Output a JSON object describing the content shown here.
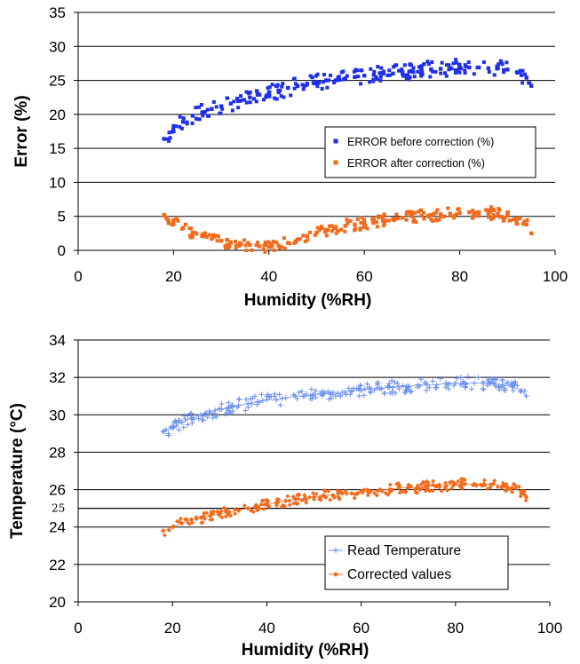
{
  "chart_data": [
    {
      "type": "scatter",
      "xlabel": "Humidity (%RH)",
      "ylabel": "Error (%)",
      "xlim": [
        0,
        100
      ],
      "ylim": [
        0,
        35
      ],
      "xticks": [
        0,
        20,
        40,
        60,
        80,
        100
      ],
      "yticks": [
        0,
        5,
        10,
        15,
        20,
        25,
        30,
        35
      ],
      "grid": "horizontal",
      "legend_position": "right-middle",
      "series": [
        {
          "name": "ERROR before correction (%)",
          "color": "#1f2fe8",
          "marker": "square",
          "x": [
            18,
            20,
            22,
            24,
            26,
            28,
            30,
            32,
            34,
            36,
            38,
            40,
            42,
            44,
            46,
            48,
            50,
            52,
            54,
            56,
            58,
            60,
            62,
            64,
            66,
            68,
            70,
            72,
            74,
            76,
            78,
            80,
            82,
            84,
            86,
            88,
            90,
            92,
            94,
            95
          ],
          "y": [
            16.4,
            17.5,
            18.9,
            19.8,
            20.3,
            20.8,
            21.2,
            21.6,
            22.0,
            22.5,
            22.9,
            23.2,
            23.5,
            23.9,
            24.2,
            24.5,
            24.8,
            25.0,
            25.0,
            25.3,
            25.5,
            25.7,
            25.8,
            26.0,
            26.0,
            26.2,
            26.4,
            26.6,
            26.6,
            26.7,
            26.8,
            26.9,
            26.9,
            26.9,
            26.8,
            26.8,
            26.6,
            26.2,
            25.4,
            24.2
          ]
        },
        {
          "name": "ERROR after correction (%)",
          "color": "#f26a1b",
          "marker": "square",
          "x": [
            18,
            20,
            22,
            24,
            26,
            28,
            30,
            32,
            34,
            36,
            38,
            40,
            42,
            44,
            46,
            48,
            50,
            52,
            54,
            56,
            58,
            60,
            62,
            64,
            66,
            68,
            70,
            72,
            74,
            76,
            78,
            80,
            82,
            84,
            86,
            88,
            90,
            92,
            94,
            95
          ],
          "y": [
            5.2,
            4.3,
            3.3,
            2.6,
            2.1,
            1.7,
            1.4,
            1.1,
            0.9,
            0.8,
            0.6,
            0.5,
            0.7,
            1.1,
            1.6,
            2.1,
            2.6,
            3.0,
            3.3,
            3.6,
            3.8,
            4.0,
            4.2,
            4.5,
            4.6,
            4.8,
            5.0,
            5.1,
            5.2,
            5.3,
            5.4,
            5.5,
            5.6,
            5.6,
            5.5,
            5.4,
            5.1,
            4.6,
            3.8,
            2.5
          ]
        }
      ]
    },
    {
      "type": "scatter",
      "xlabel": "Humidity (%RH)",
      "ylabel": "Temperature (°C)",
      "xlim": [
        0,
        100
      ],
      "ylim": [
        20,
        34
      ],
      "xticks": [
        0,
        20,
        40,
        60,
        80,
        100
      ],
      "yticks": [
        20,
        22,
        24,
        26,
        28,
        30,
        32,
        34
      ],
      "grid": "horizontal",
      "legend_position": "bottom-right",
      "reference_line": {
        "y": 25,
        "label": "25"
      },
      "series": [
        {
          "name": "Read Temperature",
          "color": "#6b8ff0",
          "marker": "cross",
          "x": [
            18,
            20,
            22,
            24,
            26,
            28,
            30,
            32,
            34,
            36,
            38,
            40,
            42,
            44,
            46,
            48,
            50,
            52,
            54,
            56,
            58,
            60,
            62,
            64,
            66,
            68,
            70,
            72,
            74,
            76,
            78,
            80,
            82,
            84,
            86,
            88,
            90,
            92,
            94,
            95
          ],
          "y": [
            29.1,
            29.3,
            29.6,
            29.8,
            30.0,
            30.1,
            30.3,
            30.4,
            30.5,
            30.6,
            30.7,
            30.8,
            30.8,
            30.9,
            31.0,
            31.0,
            31.1,
            31.1,
            31.2,
            31.2,
            31.3,
            31.3,
            31.4,
            31.4,
            31.5,
            31.5,
            31.5,
            31.6,
            31.6,
            31.6,
            31.7,
            31.7,
            31.7,
            31.7,
            31.7,
            31.7,
            31.6,
            31.5,
            31.3,
            31.0
          ]
        },
        {
          "name": "Corrected values",
          "color": "#f26a1b",
          "marker": "diamond",
          "x": [
            18,
            20,
            22,
            24,
            26,
            28,
            30,
            32,
            34,
            36,
            38,
            40,
            42,
            44,
            46,
            48,
            50,
            52,
            54,
            56,
            58,
            60,
            62,
            64,
            66,
            68,
            70,
            72,
            74,
            76,
            78,
            80,
            82,
            84,
            86,
            88,
            90,
            92,
            94,
            95
          ],
          "y": [
            23.8,
            24.0,
            24.2,
            24.4,
            24.5,
            24.6,
            24.7,
            24.8,
            24.9,
            25.0,
            25.1,
            25.2,
            25.3,
            25.4,
            25.5,
            25.5,
            25.6,
            25.7,
            25.7,
            25.8,
            25.8,
            25.9,
            25.9,
            26.0,
            26.0,
            26.1,
            26.1,
            26.1,
            26.2,
            26.2,
            26.2,
            26.3,
            26.3,
            26.3,
            26.3,
            26.3,
            26.2,
            26.1,
            25.9,
            25.6
          ]
        }
      ]
    }
  ]
}
